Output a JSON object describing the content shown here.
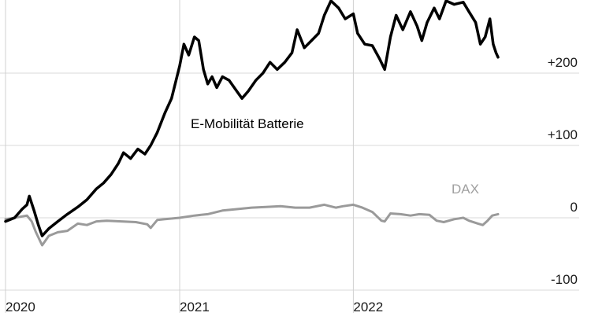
{
  "chart_data": {
    "type": "line",
    "title": "",
    "xlabel": "",
    "ylabel": "",
    "ylim": [
      -100,
      300
    ],
    "xlim": [
      "2020-01-01",
      "2022-11-01"
    ],
    "y_ticks": [
      {
        "value": 200,
        "label": "+200"
      },
      {
        "value": 100,
        "label": "+100"
      },
      {
        "value": 0,
        "label": "0"
      },
      {
        "value": -100,
        "label": "-100"
      }
    ],
    "x_ticks": [
      {
        "date": "2020-01-01",
        "label": "2020"
      },
      {
        "date": "2021-01-01",
        "label": "2021"
      },
      {
        "date": "2022-01-01",
        "label": "2022"
      }
    ],
    "grid": true,
    "series": [
      {
        "name": "E-Mobilität Batterie",
        "color": "#000000",
        "points": [
          [
            "2020-01-01",
            -5
          ],
          [
            "2020-01-20",
            0
          ],
          [
            "2020-02-05",
            12
          ],
          [
            "2020-02-15",
            18
          ],
          [
            "2020-02-20",
            30
          ],
          [
            "2020-03-01",
            10
          ],
          [
            "2020-03-10",
            -10
          ],
          [
            "2020-03-18",
            -25
          ],
          [
            "2020-04-01",
            -15
          ],
          [
            "2020-04-20",
            -5
          ],
          [
            "2020-05-10",
            5
          ],
          [
            "2020-06-01",
            15
          ],
          [
            "2020-06-20",
            25
          ],
          [
            "2020-07-10",
            40
          ],
          [
            "2020-07-25",
            48
          ],
          [
            "2020-08-10",
            60
          ],
          [
            "2020-08-25",
            75
          ],
          [
            "2020-09-05",
            90
          ],
          [
            "2020-09-20",
            82
          ],
          [
            "2020-10-05",
            95
          ],
          [
            "2020-10-20",
            88
          ],
          [
            "2020-11-01",
            100
          ],
          [
            "2020-11-15",
            118
          ],
          [
            "2020-12-01",
            145
          ],
          [
            "2020-12-15",
            165
          ],
          [
            "2021-01-01",
            210
          ],
          [
            "2021-01-10",
            240
          ],
          [
            "2021-01-20",
            225
          ],
          [
            "2021-02-01",
            250
          ],
          [
            "2021-02-10",
            245
          ],
          [
            "2021-02-20",
            205
          ],
          [
            "2021-03-01",
            185
          ],
          [
            "2021-03-10",
            195
          ],
          [
            "2021-03-20",
            180
          ],
          [
            "2021-04-01",
            195
          ],
          [
            "2021-04-15",
            190
          ],
          [
            "2021-05-01",
            175
          ],
          [
            "2021-05-12",
            165
          ],
          [
            "2021-05-25",
            175
          ],
          [
            "2021-06-10",
            190
          ],
          [
            "2021-06-25",
            200
          ],
          [
            "2021-07-10",
            215
          ],
          [
            "2021-07-25",
            205
          ],
          [
            "2021-08-10",
            215
          ],
          [
            "2021-08-25",
            228
          ],
          [
            "2021-09-05",
            260
          ],
          [
            "2021-09-20",
            235
          ],
          [
            "2021-10-05",
            245
          ],
          [
            "2021-10-20",
            255
          ],
          [
            "2021-11-01",
            280
          ],
          [
            "2021-11-15",
            300
          ],
          [
            "2021-12-01",
            290
          ],
          [
            "2021-12-15",
            275
          ],
          [
            "2022-01-01",
            282
          ],
          [
            "2022-01-10",
            255
          ],
          [
            "2022-01-25",
            240
          ],
          [
            "2022-02-10",
            238
          ],
          [
            "2022-02-25",
            220
          ],
          [
            "2022-03-08",
            205
          ],
          [
            "2022-03-20",
            250
          ],
          [
            "2022-04-01",
            280
          ],
          [
            "2022-04-15",
            260
          ],
          [
            "2022-05-01",
            285
          ],
          [
            "2022-05-15",
            265
          ],
          [
            "2022-05-25",
            245
          ],
          [
            "2022-06-05",
            270
          ],
          [
            "2022-06-20",
            290
          ],
          [
            "2022-07-01",
            275
          ],
          [
            "2022-07-15",
            300
          ],
          [
            "2022-08-01",
            295
          ],
          [
            "2022-08-20",
            298
          ],
          [
            "2022-09-01",
            285
          ],
          [
            "2022-09-15",
            270
          ],
          [
            "2022-09-25",
            240
          ],
          [
            "2022-10-05",
            250
          ],
          [
            "2022-10-15",
            275
          ],
          [
            "2022-10-22",
            240
          ],
          [
            "2022-10-28",
            228
          ],
          [
            "2022-11-01",
            222
          ]
        ]
      },
      {
        "name": "DAX",
        "color": "#9a9a9a",
        "points": [
          [
            "2020-01-01",
            -2
          ],
          [
            "2020-01-20",
            0
          ],
          [
            "2020-02-15",
            3
          ],
          [
            "2020-02-25",
            -5
          ],
          [
            "2020-03-05",
            -20
          ],
          [
            "2020-03-18",
            -38
          ],
          [
            "2020-04-01",
            -25
          ],
          [
            "2020-04-20",
            -20
          ],
          [
            "2020-05-10",
            -18
          ],
          [
            "2020-06-01",
            -8
          ],
          [
            "2020-06-20",
            -10
          ],
          [
            "2020-07-10",
            -5
          ],
          [
            "2020-08-01",
            -4
          ],
          [
            "2020-09-01",
            -5
          ],
          [
            "2020-10-01",
            -6
          ],
          [
            "2020-10-25",
            -9
          ],
          [
            "2020-11-01",
            -14
          ],
          [
            "2020-11-15",
            -3
          ],
          [
            "2020-12-01",
            -2
          ],
          [
            "2021-01-01",
            0
          ],
          [
            "2021-02-01",
            3
          ],
          [
            "2021-03-01",
            5
          ],
          [
            "2021-04-01",
            10
          ],
          [
            "2021-05-01",
            12
          ],
          [
            "2021-06-01",
            14
          ],
          [
            "2021-07-01",
            15
          ],
          [
            "2021-08-01",
            16
          ],
          [
            "2021-09-01",
            14
          ],
          [
            "2021-10-01",
            14
          ],
          [
            "2021-11-01",
            18
          ],
          [
            "2021-11-25",
            14
          ],
          [
            "2021-12-10",
            16
          ],
          [
            "2022-01-01",
            18
          ],
          [
            "2022-01-20",
            14
          ],
          [
            "2022-02-10",
            8
          ],
          [
            "2022-03-01",
            -4
          ],
          [
            "2022-03-08",
            -5
          ],
          [
            "2022-03-20",
            6
          ],
          [
            "2022-04-10",
            5
          ],
          [
            "2022-05-01",
            3
          ],
          [
            "2022-05-20",
            5
          ],
          [
            "2022-06-10",
            4
          ],
          [
            "2022-06-25",
            -4
          ],
          [
            "2022-07-10",
            -6
          ],
          [
            "2022-08-01",
            -2
          ],
          [
            "2022-08-20",
            0
          ],
          [
            "2022-09-01",
            -4
          ],
          [
            "2022-09-20",
            -8
          ],
          [
            "2022-09-30",
            -10
          ],
          [
            "2022-10-10",
            -4
          ],
          [
            "2022-10-20",
            3
          ],
          [
            "2022-11-01",
            5
          ]
        ]
      }
    ],
    "annotations": [
      {
        "text": "E-Mobilität Batterie",
        "series": 0
      },
      {
        "text": "DAX",
        "series": 1
      }
    ]
  }
}
